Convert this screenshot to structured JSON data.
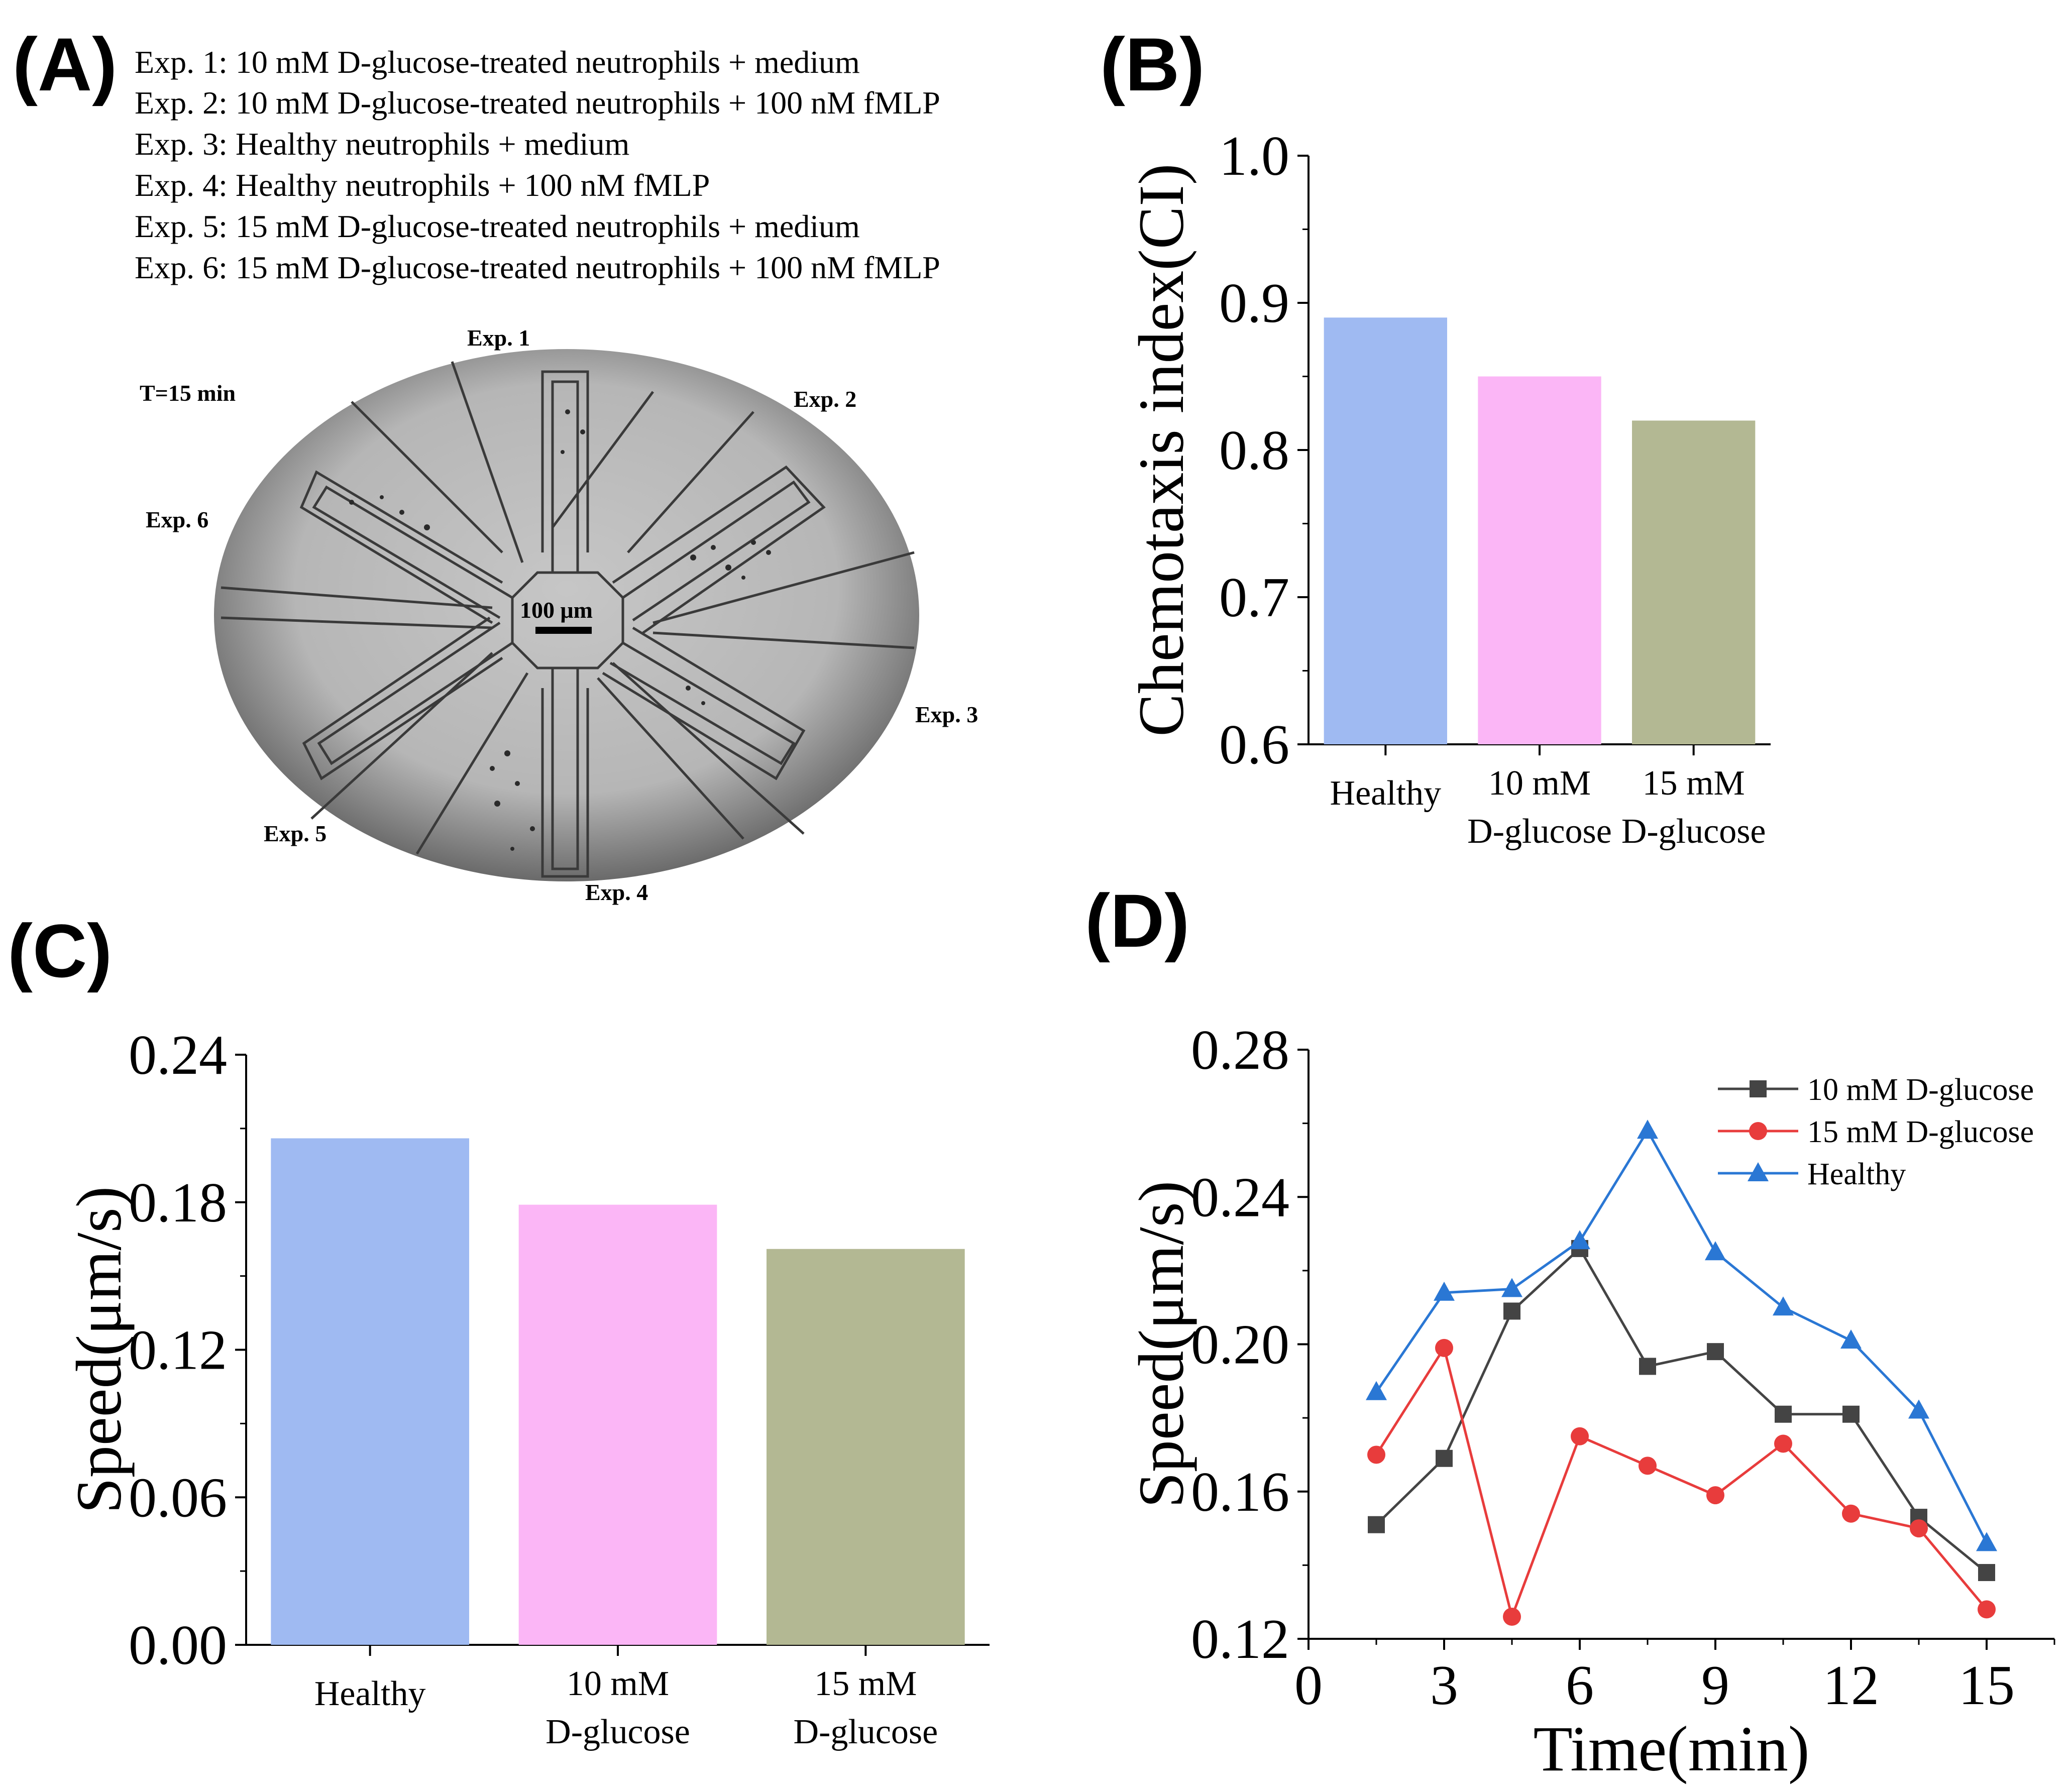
{
  "panels": {
    "a": "(A)",
    "b": "(B)",
    "c": "(C)",
    "d": "(D)"
  },
  "panel_a": {
    "experiments": [
      "Exp. 1: 10 mM D-glucose-treated neutrophils + medium",
      "Exp. 2: 10 mM D-glucose-treated neutrophils + 100 nM fMLP",
      "Exp. 3: Healthy neutrophils + medium",
      "Exp. 4: Healthy neutrophils + 100 nM fMLP",
      "Exp. 5: 15 mM D-glucose-treated neutrophils + medium",
      "Exp. 6: 15 mM D-glucose-treated neutrophils + 100 nM fMLP"
    ],
    "time_label": "T=15 min",
    "scale_bar": "100 μm",
    "exp_labels": {
      "e1": "Exp. 1",
      "e2": "Exp. 2",
      "e3": "Exp. 3",
      "e4": "Exp. 4",
      "e5": "Exp. 5",
      "e6": "Exp. 6"
    }
  },
  "colors": {
    "healthy": "#9fbaf2",
    "d10": "#fbb6f6",
    "d15": "#b3b893",
    "sq": "#444444",
    "circ": "#e83c3c",
    "tri": "#2a77d4"
  },
  "chart_data": [
    {
      "id": "B",
      "type": "bar",
      "categories": [
        "Healthy",
        "10 mM D-glucose",
        "15 mM D-glucose"
      ],
      "category_lines": [
        [
          "Healthy"
        ],
        [
          "10 mM",
          "D-glucose"
        ],
        [
          "15 mM",
          "D-glucose"
        ]
      ],
      "values": [
        0.89,
        0.85,
        0.82
      ],
      "ylabel": "Chemotaxis index(CI)",
      "xlabel": "",
      "ylim": [
        0.6,
        1.0
      ],
      "yticks": [
        "0.6",
        "0.7",
        "0.8",
        "0.9",
        "1.0"
      ]
    },
    {
      "id": "C",
      "type": "bar",
      "categories": [
        "Healthy",
        "10 mM D-glucose",
        "15 mM D-glucose"
      ],
      "category_lines": [
        [
          "Healthy"
        ],
        [
          "10 mM",
          "D-glucose"
        ],
        [
          "15 mM",
          "D-glucose"
        ]
      ],
      "values": [
        0.206,
        0.179,
        0.161
      ],
      "ylabel": "Speed(μm/s)",
      "xlabel": "",
      "ylim": [
        0.0,
        0.24
      ],
      "yticks": [
        "0.00",
        "0.06",
        "0.12",
        "0.18",
        "0.24"
      ]
    },
    {
      "id": "D",
      "type": "line",
      "x": [
        1.5,
        3,
        4.5,
        6,
        7.5,
        9,
        10.5,
        12,
        13.5,
        15
      ],
      "series": [
        {
          "name": "10 mM D-glucose",
          "marker": "square",
          "values": [
            0.151,
            0.169,
            0.209,
            0.226,
            0.194,
            0.198,
            0.181,
            0.181,
            0.153,
            0.138
          ]
        },
        {
          "name": "15 mM D-glucose",
          "marker": "circle",
          "values": [
            0.17,
            0.199,
            0.126,
            0.175,
            0.167,
            0.159,
            0.173,
            0.154,
            0.15,
            0.128
          ]
        },
        {
          "name": "Healthy",
          "marker": "triangle",
          "values": [
            0.187,
            0.214,
            0.215,
            0.228,
            0.258,
            0.225,
            0.21,
            0.201,
            0.182,
            0.146
          ]
        }
      ],
      "xlabel": "Time(min)",
      "ylabel": "Speed(μm/s)",
      "xlim": [
        0,
        16.5
      ],
      "ylim": [
        0.12,
        0.28
      ],
      "xticks": [
        "0",
        "3",
        "6",
        "9",
        "12",
        "15"
      ],
      "yticks": [
        "0.12",
        "0.16",
        "0.20",
        "0.24",
        "0.28"
      ],
      "legend_position": "top-right"
    }
  ]
}
